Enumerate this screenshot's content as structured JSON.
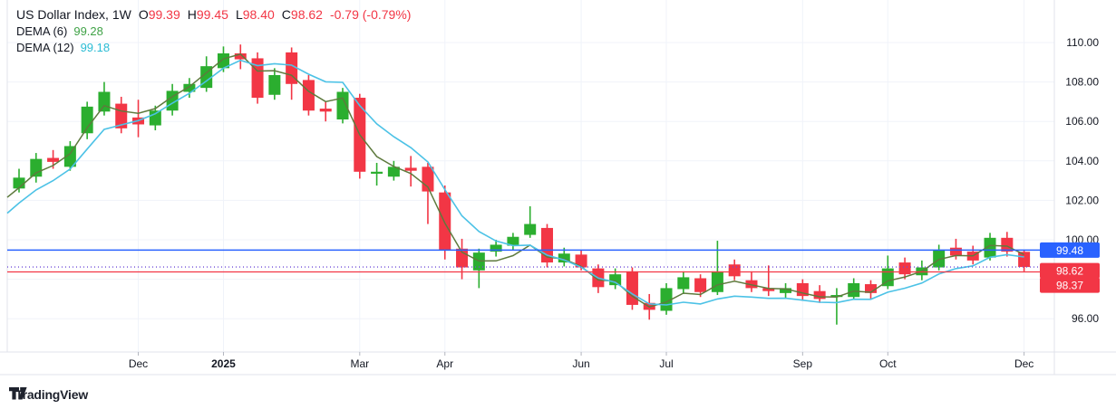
{
  "header": {
    "title": "US Dollar Index, 1W",
    "ohlc": [
      {
        "k": "O",
        "v": "99.39"
      },
      {
        "k": "H",
        "v": "99.45"
      },
      {
        "k": "L",
        "v": "98.40"
      },
      {
        "k": "C",
        "v": "98.62"
      }
    ],
    "change": "-0.79 (-0.79%)",
    "indicators": [
      {
        "label": "DEMA (6)",
        "value": "99.28"
      },
      {
        "label": "DEMA (12)",
        "value": "99.18"
      }
    ]
  },
  "footer": {
    "brand": "TradingView"
  },
  "colors": {
    "text": "#131722",
    "up": "#2bae2f",
    "down": "#f23645",
    "dema6_line": "#5e7a3d",
    "dema6_value": "#3fa246",
    "dema12_line": "#4cc2e6",
    "dema12_value": "#2bbcd4",
    "blue_line": "#2962ff",
    "purple_dotted": "#6f4bd8",
    "grid": "#f0f3fa",
    "axis_border": "#e0e3eb",
    "tick": "#b2b5be"
  },
  "chart_data": {
    "type": "candlestick",
    "symbol": "US Dollar Index",
    "timeframe": "1W",
    "title": "US Dollar Index, 1W",
    "ylim": [
      94.3,
      112.2
    ],
    "grid": true,
    "y_axis": {
      "ticks": [
        110,
        108,
        106,
        104,
        102,
        100,
        96
      ],
      "format": "0.00"
    },
    "x_axis": {
      "labels": [
        {
          "i": 7,
          "t": "Dec",
          "year": false
        },
        {
          "i": 12,
          "t": "2025",
          "year": true
        },
        {
          "i": 20,
          "t": "Mar",
          "year": false
        },
        {
          "i": 25,
          "t": "Apr",
          "year": false
        },
        {
          "i": 33,
          "t": "Jun",
          "year": false
        },
        {
          "i": 38,
          "t": "Jul",
          "year": false
        },
        {
          "i": 46,
          "t": "Sep",
          "year": false
        },
        {
          "i": 51,
          "t": "Oct",
          "year": false
        },
        {
          "i": 59,
          "t": "Dec",
          "year": false
        }
      ]
    },
    "candles": [
      [
        102.6,
        103.6,
        102.4,
        103.15
      ],
      [
        103.2,
        104.4,
        102.9,
        104.1
      ],
      [
        104.15,
        104.55,
        103.6,
        103.95
      ],
      [
        103.7,
        105.0,
        103.5,
        104.75
      ],
      [
        105.4,
        107.0,
        105.1,
        106.75
      ],
      [
        106.5,
        108.0,
        106.3,
        107.5
      ],
      [
        106.9,
        107.25,
        105.4,
        105.65
      ],
      [
        106.2,
        107.1,
        105.2,
        105.85
      ],
      [
        105.8,
        106.8,
        105.55,
        106.55
      ],
      [
        106.55,
        107.9,
        106.3,
        107.55
      ],
      [
        107.5,
        108.2,
        107.2,
        107.9
      ],
      [
        107.7,
        109.3,
        107.5,
        108.8
      ],
      [
        108.7,
        109.8,
        108.5,
        109.45
      ],
      [
        109.45,
        109.9,
        108.65,
        109.15
      ],
      [
        109.2,
        109.5,
        106.9,
        107.2
      ],
      [
        107.35,
        108.7,
        107.1,
        108.35
      ],
      [
        109.5,
        109.75,
        107.1,
        107.9
      ],
      [
        108.1,
        108.35,
        106.3,
        106.55
      ],
      [
        106.65,
        107.0,
        106.0,
        106.5
      ],
      [
        106.1,
        107.7,
        105.9,
        107.5
      ],
      [
        107.2,
        107.4,
        103.1,
        103.45
      ],
      [
        103.35,
        103.9,
        102.75,
        103.45
      ],
      [
        103.2,
        104.0,
        103.0,
        103.7
      ],
      [
        103.65,
        104.25,
        102.7,
        103.5
      ],
      [
        103.7,
        103.9,
        100.8,
        102.45
      ],
      [
        102.4,
        102.75,
        99.0,
        99.45
      ],
      [
        99.55,
        100.05,
        98.0,
        98.6
      ],
      [
        98.45,
        99.55,
        97.55,
        99.35
      ],
      [
        99.4,
        100.0,
        99.15,
        99.75
      ],
      [
        99.7,
        100.35,
        99.5,
        100.15
      ],
      [
        100.25,
        101.7,
        100.1,
        100.8
      ],
      [
        100.6,
        100.8,
        98.6,
        98.85
      ],
      [
        98.85,
        99.6,
        98.65,
        99.3
      ],
      [
        99.25,
        99.45,
        98.45,
        98.6
      ],
      [
        98.55,
        98.75,
        97.3,
        97.6
      ],
      [
        97.7,
        98.55,
        97.5,
        98.25
      ],
      [
        98.4,
        98.6,
        96.45,
        96.7
      ],
      [
        96.8,
        97.25,
        95.95,
        96.45
      ],
      [
        96.4,
        97.8,
        96.2,
        97.55
      ],
      [
        97.5,
        98.4,
        97.25,
        98.1
      ],
      [
        98.05,
        98.25,
        97.1,
        97.35
      ],
      [
        97.35,
        99.95,
        97.2,
        98.4
      ],
      [
        98.75,
        99.0,
        97.95,
        98.15
      ],
      [
        97.95,
        98.4,
        97.35,
        97.55
      ],
      [
        97.55,
        98.7,
        97.15,
        97.4
      ],
      [
        97.3,
        97.8,
        97.0,
        97.55
      ],
      [
        97.8,
        98.0,
        96.9,
        97.15
      ],
      [
        97.4,
        97.7,
        96.8,
        97.0
      ],
      [
        97.1,
        97.55,
        95.7,
        97.2
      ],
      [
        97.1,
        98.05,
        96.95,
        97.8
      ],
      [
        97.75,
        97.95,
        97.0,
        97.3
      ],
      [
        97.65,
        99.2,
        97.5,
        98.55
      ],
      [
        98.85,
        99.1,
        98.0,
        98.25
      ],
      [
        98.2,
        98.95,
        97.95,
        98.6
      ],
      [
        98.6,
        99.75,
        98.45,
        99.5
      ],
      [
        99.6,
        100.05,
        99.0,
        99.2
      ],
      [
        99.4,
        99.7,
        98.75,
        98.95
      ],
      [
        99.1,
        100.35,
        98.95,
        100.1
      ],
      [
        100.1,
        100.4,
        99.15,
        99.4
      ],
      [
        99.39,
        99.45,
        98.4,
        98.62
      ]
    ],
    "overlays": [
      {
        "name": "DEMA",
        "period": 6,
        "last": 99.28,
        "start": 102.15
      },
      {
        "name": "DEMA",
        "period": 12,
        "last": 99.18,
        "start": 101.35
      }
    ],
    "price_lines": [
      {
        "price": 99.48,
        "label": "99.48",
        "style": "solid",
        "which": "blue-level"
      },
      {
        "price": 98.62,
        "label": "98.62",
        "style": "dotted",
        "which": "last-close"
      },
      {
        "price": 98.37,
        "label": "98.37",
        "style": "solid",
        "which": "red-level"
      }
    ],
    "legend_position": "top-left"
  }
}
